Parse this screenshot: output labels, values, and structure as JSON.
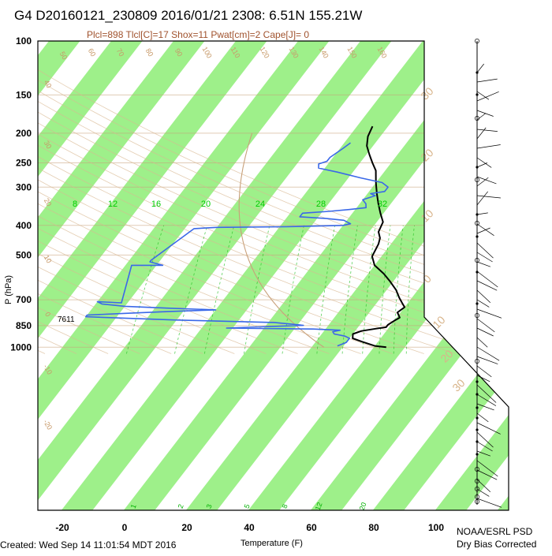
{
  "header": {
    "title": "G4 D20160121_230809 2016/01/21 2308:  6.51N 155.21W",
    "subtitle": "Plcl=898 Tlcl[C]=17 Shox=11 Pwat[cm]=2 Cape[J]= 0"
  },
  "footer": {
    "created": "Created: Wed Sep 14 11:01:54 MDT 2016",
    "credit_line1": "NOAA/ESRL PSD",
    "credit_line2": "Dry Bias Corrected"
  },
  "chart_data": {
    "type": "line",
    "title": "G4 D20160121_230809 2016/01/21 2308:  6.51N 155.21W",
    "subtitle": "Plcl=898 Tlcl[C]=17 Shox=11 Pwat[cm]=2 Cape[J]= 0",
    "xlabel": "Temperature (F)",
    "ylabel": "P (hPa)",
    "x_ticks": [
      "-20",
      "0",
      "20",
      "40",
      "60",
      "80",
      "100"
    ],
    "y_ticks": [
      "100",
      "150",
      "200",
      "250",
      "300",
      "400",
      "500",
      "700",
      "850",
      "1000"
    ],
    "xlim": [
      -28,
      120
    ],
    "ylim": [
      1050,
      100
    ],
    "y_scale": "log",
    "annotation": "7611",
    "mixing_ratio_labels": [
      "8",
      "12",
      "16",
      "20",
      "24",
      "28",
      "32"
    ],
    "lower_mixing_ratio_labels": [
      "1",
      "2",
      "3",
      "5",
      "8",
      "12",
      "20"
    ],
    "dry_adiabat_labels": [
      "50",
      "60",
      "70",
      "80",
      "90",
      "100",
      "110",
      "120",
      "130",
      "140",
      "150",
      "160",
      "40",
      "30",
      "20",
      "10",
      "0",
      "-10",
      "-20"
    ],
    "moist_adiabat_labels": [
      "30",
      "20",
      "10",
      "0",
      "10",
      "20",
      "30"
    ],
    "series": [
      {
        "name": "Temperature",
        "color": "#000000",
        "points": [
          [
            84,
            1000
          ],
          [
            80,
            990
          ],
          [
            75,
            960
          ],
          [
            71,
            935
          ],
          [
            70,
            905
          ],
          [
            72,
            885
          ],
          [
            76,
            870
          ],
          [
            79,
            860
          ],
          [
            79,
            845
          ],
          [
            80,
            820
          ],
          [
            81,
            800
          ],
          [
            79,
            770
          ],
          [
            80,
            740
          ],
          [
            78,
            715
          ],
          [
            76,
            690
          ],
          [
            73,
            650
          ],
          [
            69,
            610
          ],
          [
            65,
            575
          ],
          [
            60,
            540
          ],
          [
            57,
            505
          ],
          [
            56,
            460
          ],
          [
            55,
            440
          ],
          [
            53,
            420
          ],
          [
            52,
            390
          ],
          [
            49,
            365
          ],
          [
            46,
            340
          ],
          [
            43,
            315
          ],
          [
            40,
            290
          ],
          [
            37,
            265
          ],
          [
            34,
            250
          ],
          [
            31,
            235
          ],
          [
            28,
            220
          ],
          [
            26,
            205
          ],
          [
            25,
            190
          ]
        ]
      },
      {
        "name": "Dewpoint",
        "color": "#3a68e8",
        "points": [
          [
            68,
            990
          ],
          [
            70,
            965
          ],
          [
            70,
            935
          ],
          [
            68,
            920
          ],
          [
            64,
            905
          ],
          [
            63,
            890
          ],
          [
            65,
            880
          ],
          [
            56,
            872
          ],
          [
            28,
            866
          ],
          [
            40,
            857
          ],
          [
            52,
            848
          ],
          [
            42,
            830
          ],
          [
            10,
            815
          ],
          [
            -20,
            795
          ],
          [
            -20,
            785
          ],
          [
            -8,
            775
          ],
          [
            5,
            765
          ],
          [
            20,
            755
          ],
          [
            4,
            745
          ],
          [
            -10,
            735
          ],
          [
            -18,
            722
          ],
          [
            -20,
            710
          ],
          [
            -12,
            716
          ],
          [
            -18,
            540
          ],
          [
            -8,
            540
          ],
          [
            -13,
            526
          ],
          [
            -13,
            520
          ],
          [
            -7,
            410
          ],
          [
            0,
            406
          ],
          [
            22,
            404
          ],
          [
            40,
            400
          ],
          [
            42,
            395
          ],
          [
            39,
            385
          ],
          [
            33,
            380
          ],
          [
            24,
            375
          ],
          [
            24,
            365
          ],
          [
            32,
            360
          ],
          [
            38,
            355
          ],
          [
            43,
            350
          ],
          [
            42,
            340
          ],
          [
            40,
            330
          ],
          [
            43,
            320
          ],
          [
            41,
            315
          ],
          [
            45,
            310
          ],
          [
            45,
            300
          ],
          [
            42,
            290
          ],
          [
            34,
            280
          ],
          [
            25,
            268
          ],
          [
            18,
            260
          ],
          [
            17,
            252
          ],
          [
            19,
            247
          ],
          [
            19,
            240
          ],
          [
            20,
            232
          ],
          [
            21,
            224
          ],
          [
            22,
            215
          ]
        ]
      }
    ]
  }
}
